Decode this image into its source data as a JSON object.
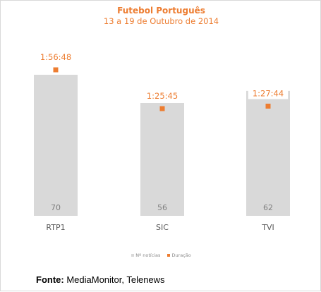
{
  "chart_data": {
    "type": "bar",
    "title": "Futebol Português",
    "subtitle": "13 a 19 de Outubro de 2014",
    "categories": [
      "RTP1",
      "SIC",
      "TVI"
    ],
    "series": [
      {
        "name": "Nº notícias",
        "type": "bar",
        "values": [
          70,
          56,
          62
        ],
        "color": "#d9d9d9"
      },
      {
        "name": "Duração",
        "type": "marker",
        "values": [
          "1:56:48",
          "1:25:45",
          "1:27:44"
        ],
        "color": "#ed7d31"
      }
    ],
    "legend_position": "bottom",
    "grid": false
  },
  "colors": {
    "accent": "#ed7d31",
    "bar": "#d9d9d9",
    "bar_label": "#7f7f7f",
    "category_label": "#595959"
  },
  "source": {
    "label": "Fonte:",
    "text": " MediaMonitor, Telenews"
  }
}
